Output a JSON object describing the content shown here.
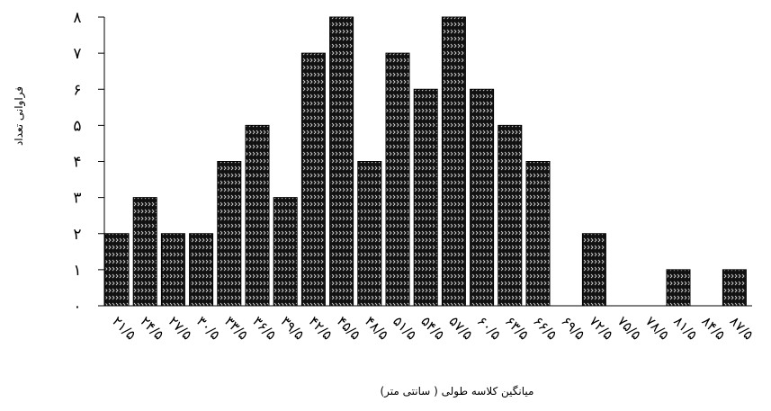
{
  "chart_data": {
    "type": "bar",
    "title": "",
    "xlabel": "میانگین کلاسه طولی ( سانتی متر)",
    "ylabel": "فراوانی تعداد",
    "ylim": [
      0,
      8
    ],
    "yticks": [
      "۰",
      "۱",
      "۲",
      "۳",
      "۴",
      "۵",
      "۶",
      "۷",
      "۸"
    ],
    "grid": false,
    "categories": [
      "۲۱/۵",
      "۲۴/۵",
      "۲۷/۵",
      "۳۰/۵",
      "۳۳/۵",
      "۳۶/۵",
      "۳۹/۵",
      "۴۲/۵",
      "۴۵/۵",
      "۴۸/۵",
      "۵۱/۵",
      "۵۴/۵",
      "۵۷/۵",
      "۶۰/۵",
      "۶۳/۵",
      "۶۶/۵",
      "۶۹/۵",
      "۷۲/۵",
      "۷۵/۵",
      "۷۸/۵",
      "۸۱/۵",
      "۸۴/۵",
      "۸۷/۵"
    ],
    "values": [
      2,
      3,
      2,
      2,
      4,
      5,
      3,
      7,
      8,
      4,
      7,
      6,
      8,
      6,
      5,
      4,
      0,
      2,
      0,
      0,
      1,
      0,
      1
    ],
    "bar_color": "#111111",
    "pattern_color": "#cfcfcf"
  }
}
